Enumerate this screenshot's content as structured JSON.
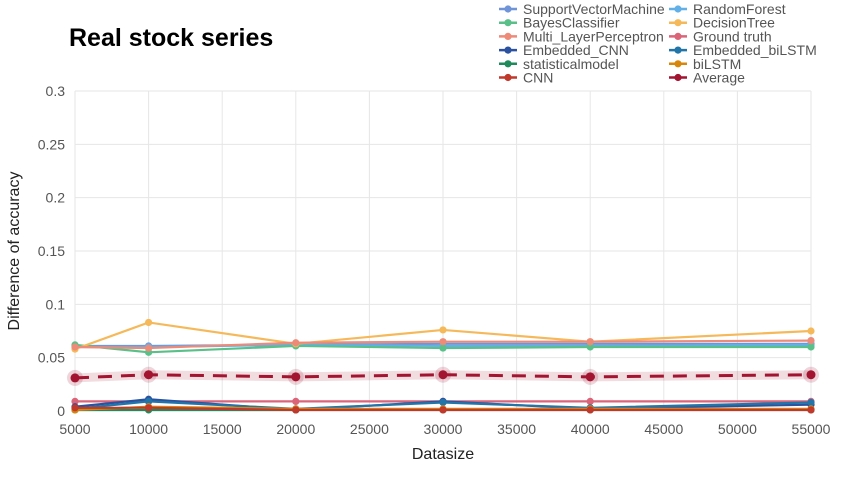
{
  "chart_data": {
    "type": "line",
    "title": "Real stock series",
    "xlabel": "Datasize",
    "ylabel": "Difference of accuracy",
    "x": [
      5000,
      10000,
      20000,
      30000,
      40000,
      55000
    ],
    "xlim": [
      5000,
      55000
    ],
    "xticks": [
      5000,
      10000,
      15000,
      20000,
      25000,
      30000,
      35000,
      40000,
      45000,
      50000,
      55000
    ],
    "ylim": [
      0,
      0.3
    ],
    "yticks": [
      0,
      0.05,
      0.1,
      0.15,
      0.2,
      0.25,
      0.3
    ],
    "ytick_labels": [
      "0",
      "0.05",
      "0.1",
      "0.15",
      "0.2",
      "0.25",
      "0.3"
    ],
    "grid": true,
    "legend_position": "top-right",
    "series": [
      {
        "name": "SupportVectorMachine",
        "color": "#6f95d8",
        "values": [
          0.061,
          0.061,
          0.062,
          0.063,
          0.063,
          0.063
        ]
      },
      {
        "name": "RandomForest",
        "color": "#62b0e8",
        "values": [
          0.06,
          0.06,
          0.062,
          0.061,
          0.061,
          0.062
        ]
      },
      {
        "name": "BayesClassifier",
        "color": "#5ac08a",
        "values": [
          0.062,
          0.055,
          0.061,
          0.059,
          0.06,
          0.06
        ]
      },
      {
        "name": "DecisionTree",
        "color": "#f5b95a",
        "values": [
          0.058,
          0.083,
          0.063,
          0.076,
          0.065,
          0.075
        ]
      },
      {
        "name": "Multi_LayerPerceptron",
        "color": "#ee8a78",
        "values": [
          0.06,
          0.059,
          0.064,
          0.065,
          0.065,
          0.066
        ]
      },
      {
        "name": "Ground truth",
        "color": "#db6479",
        "values": [
          0.009,
          0.009,
          0.009,
          0.009,
          0.009,
          0.009
        ]
      },
      {
        "name": "Embedded_CNN",
        "color": "#2a52a0",
        "values": [
          0.004,
          0.011,
          0.001,
          0.009,
          0.002,
          0.006
        ]
      },
      {
        "name": "Embedded_biLSTM",
        "color": "#2175a8",
        "values": [
          0.002,
          0.009,
          0.002,
          0.008,
          0.003,
          0.008
        ]
      },
      {
        "name": "statisticalmodel",
        "color": "#1f8a5a",
        "values": [
          0.001,
          0.001,
          0.001,
          0.001,
          0.001,
          0.001
        ]
      },
      {
        "name": "biLSTM",
        "color": "#d9870a",
        "values": [
          0.001,
          0.004,
          0.002,
          0.002,
          0.002,
          0.002
        ]
      },
      {
        "name": "CNN",
        "color": "#c0392b",
        "values": [
          0.003,
          0.003,
          0.001,
          0.001,
          0.001,
          0.001
        ]
      },
      {
        "name": "Average",
        "color": "#a31430",
        "dashed": true,
        "values": [
          0.031,
          0.034,
          0.032,
          0.034,
          0.032,
          0.034
        ]
      }
    ]
  }
}
